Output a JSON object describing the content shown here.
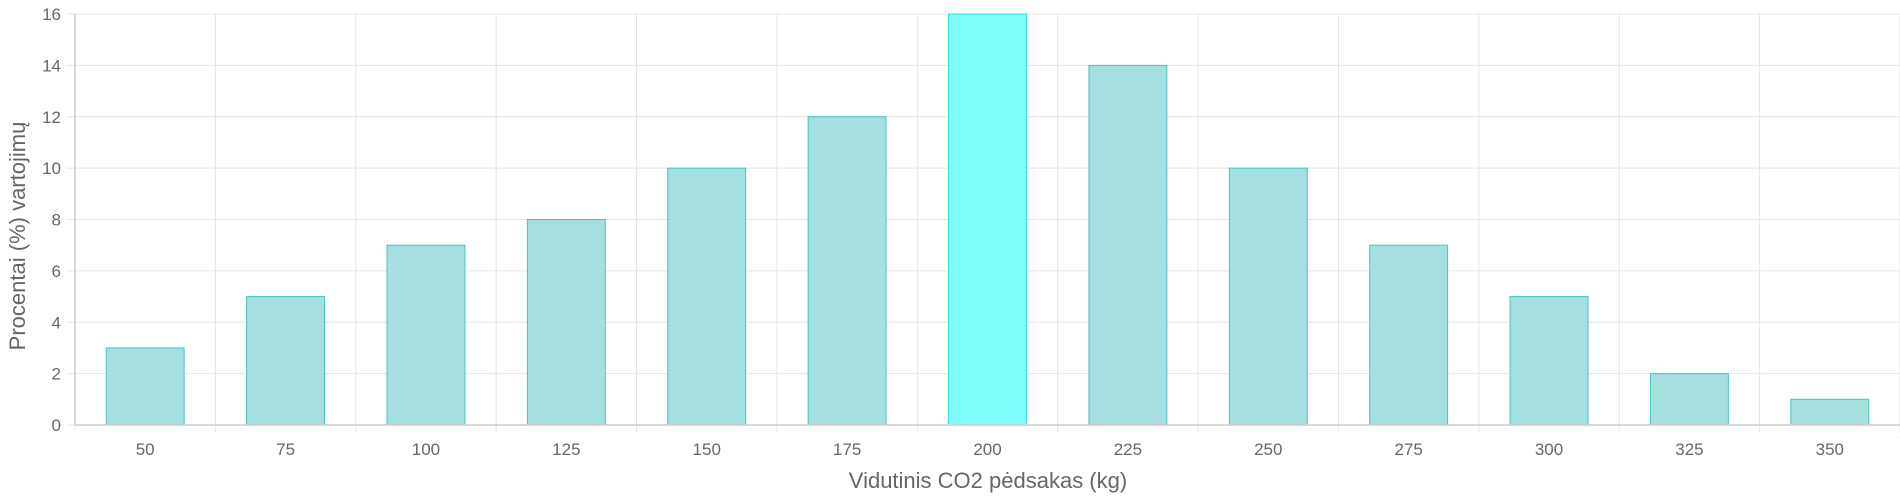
{
  "chart_data": {
    "type": "bar",
    "xlabel": "Vidutinis CO2 pėdsakas (kg)",
    "ylabel": "Procentai (%) vartojimų",
    "categories": [
      "50",
      "75",
      "100",
      "125",
      "150",
      "175",
      "200",
      "225",
      "250",
      "275",
      "300",
      "325",
      "350"
    ],
    "values": [
      3,
      5,
      7,
      8,
      10,
      12,
      16,
      14,
      10,
      7,
      5,
      2,
      1
    ],
    "ylim": [
      0,
      16
    ],
    "yticks": [
      "0",
      "2",
      "4",
      "6",
      "8",
      "10",
      "12",
      "14",
      "16"
    ],
    "highlight_category": "200",
    "grid": true,
    "colors": {
      "bar_fill": "#a6dfe0",
      "bar_stroke": "#4bc0c0",
      "highlight_fill": "#80fcfc",
      "highlight_stroke": "#33dcdc",
      "grid": "#e5e5e5",
      "axis": "#cccccc",
      "text": "#666666"
    }
  }
}
